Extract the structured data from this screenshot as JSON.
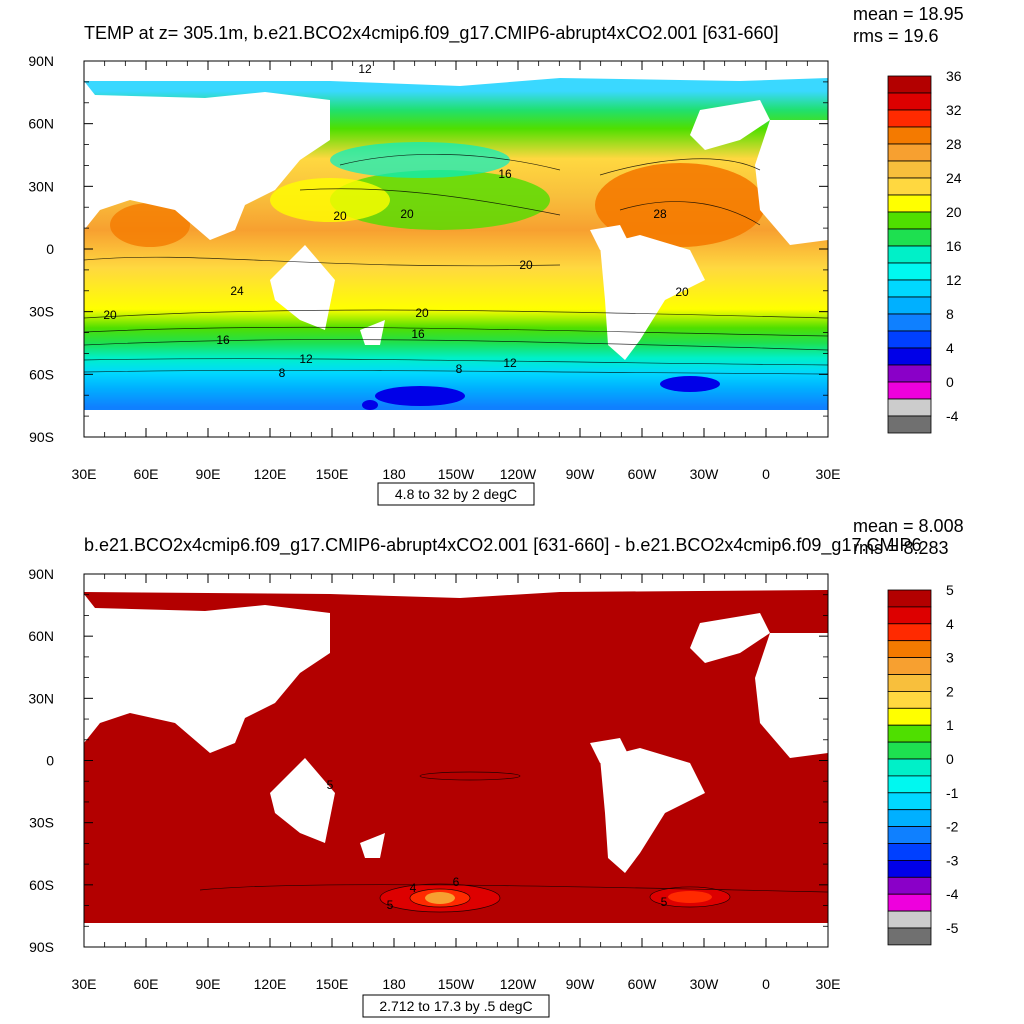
{
  "chart_data": [
    {
      "type": "heatmap",
      "title": "TEMP at z= 305.1m, b.e21.BCO2x4cmip6.f09_g17.CMIP6-abrupt4xCO2.001 [631-660]",
      "stats": {
        "mean": "mean = 18.95",
        "rms": "rms = 19.6"
      },
      "x_ticks": [
        "30E",
        "60E",
        "90E",
        "120E",
        "150E",
        "180",
        "150W",
        "120W",
        "90W",
        "60W",
        "30W",
        "0",
        "30E"
      ],
      "y_ticks": [
        "90N",
        "60N",
        "30N",
        "0",
        "30S",
        "60S",
        "90S"
      ],
      "xlim": [
        30,
        390
      ],
      "ylim": [
        -90,
        90
      ],
      "colorbar": {
        "labels": [
          "36",
          "32",
          "28",
          "24",
          "20",
          "16",
          "12",
          "8",
          "4",
          "0",
          "-4"
        ],
        "colors": [
          "#b30000",
          "#dd0000",
          "#ff2a00",
          "#f47a00",
          "#f7a030",
          "#f8bf3c",
          "#ffd840",
          "#ffff00",
          "#4fdf00",
          "#1ee050",
          "#00f0c8",
          "#00f8f0",
          "#00d8ff",
          "#00b0ff",
          "#0f80ff",
          "#0040ff",
          "#0000e8",
          "#8a00c8",
          "#ee00dd",
          "#cccccc",
          "#707070"
        ]
      },
      "contour_info": "4.8 to 32 by 2 degC",
      "contour_labels": [
        "12",
        "16",
        "20",
        "20",
        "24",
        "20",
        "20",
        "28",
        "20",
        "20",
        "16",
        "16",
        "12",
        "8",
        "12",
        "8"
      ]
    },
    {
      "type": "heatmap",
      "title": "b.e21.BCO2x4cmip6.f09_g17.CMIP6-abrupt4xCO2.001 [631-660] - b.e21.BCO2x4cmip6.f09_g17.CMIP6",
      "stats": {
        "mean": "mean = 8.008",
        "rms": "rms = 8.283"
      },
      "x_ticks": [
        "30E",
        "60E",
        "90E",
        "120E",
        "150E",
        "180",
        "150W",
        "120W",
        "90W",
        "60W",
        "30W",
        "0",
        "30E"
      ],
      "y_ticks": [
        "90N",
        "60N",
        "30N",
        "0",
        "30S",
        "60S",
        "90S"
      ],
      "xlim": [
        30,
        390
      ],
      "ylim": [
        -90,
        90
      ],
      "colorbar": {
        "labels": [
          "5",
          "4",
          "3",
          "2",
          "1",
          "0",
          "-1",
          "-2",
          "-3",
          "-4",
          "-5"
        ],
        "colors": [
          "#b30000",
          "#dd0000",
          "#ff2a00",
          "#f47a00",
          "#f7a030",
          "#f8bf3c",
          "#ffd840",
          "#ffff00",
          "#4fdf00",
          "#1ee050",
          "#00f0c8",
          "#00f8f0",
          "#00d8ff",
          "#00b0ff",
          "#0f80ff",
          "#0040ff",
          "#0000e8",
          "#8a00c8",
          "#ee00dd",
          "#cccccc",
          "#707070"
        ]
      },
      "contour_info": "2.712 to 17.3 by .5 degC",
      "contour_labels": [
        "5",
        "6",
        "4",
        "5",
        "5"
      ]
    }
  ]
}
